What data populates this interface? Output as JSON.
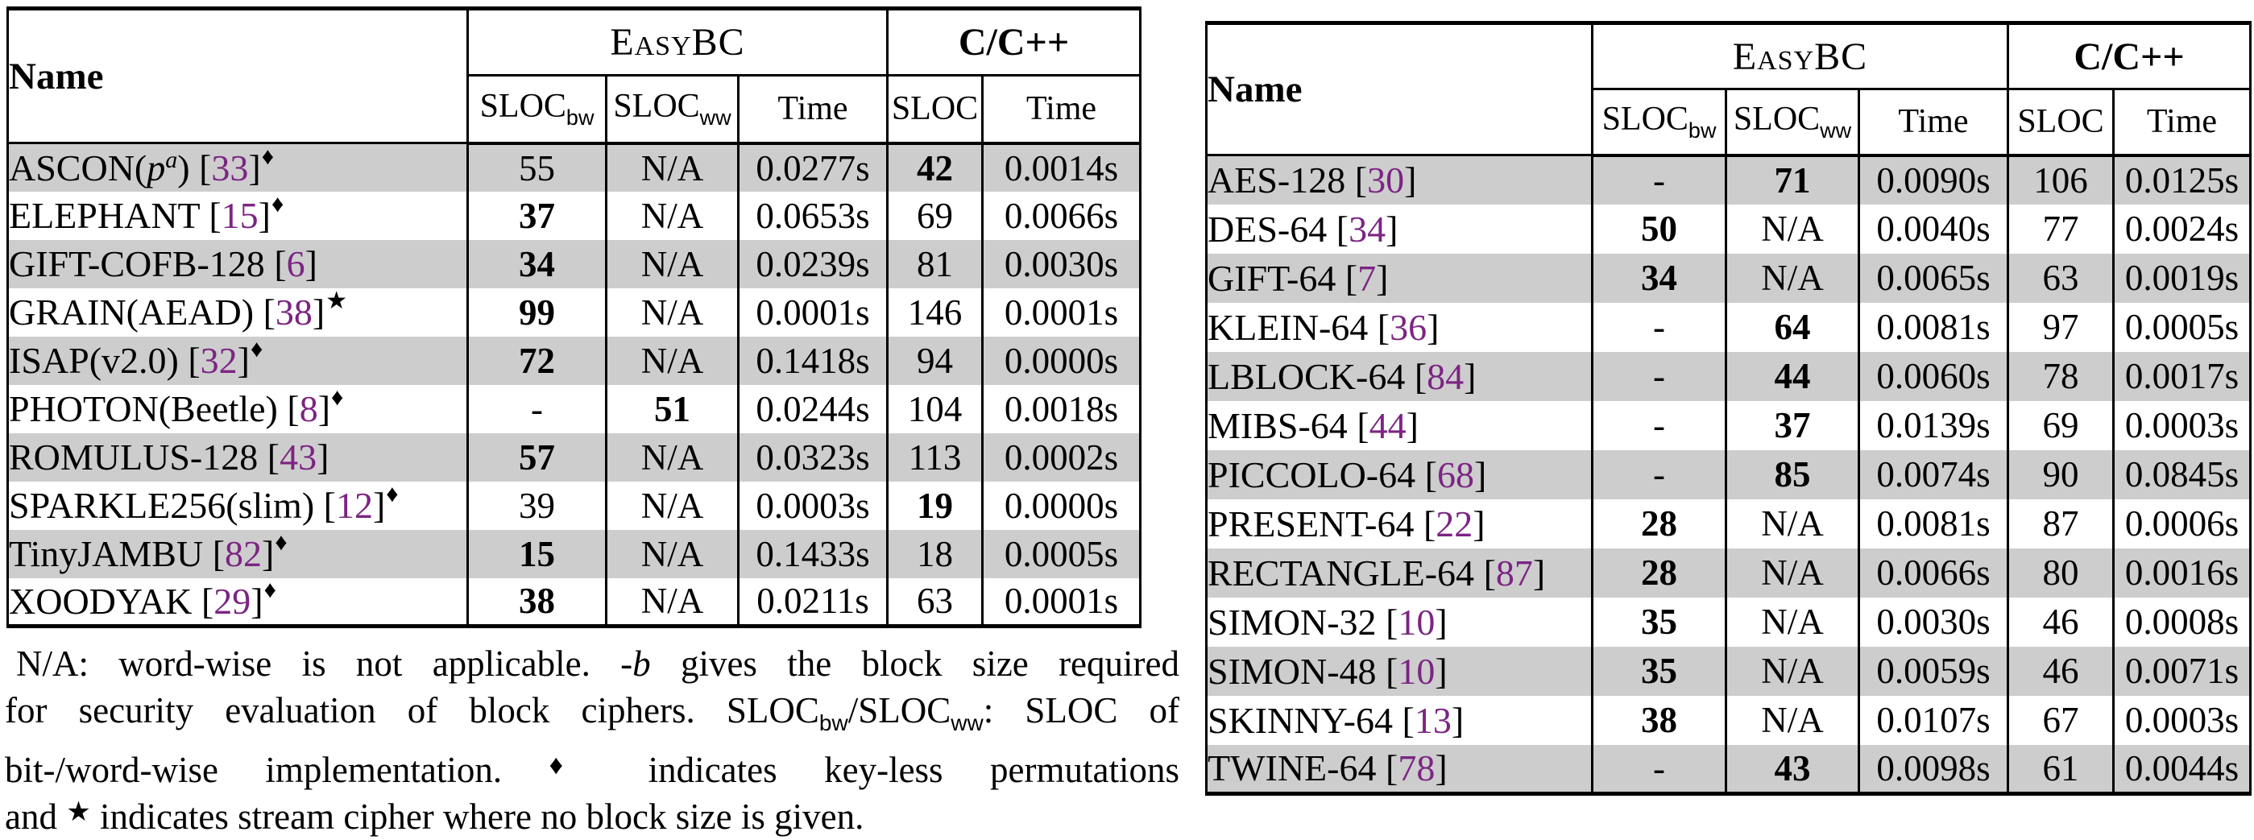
{
  "colors": {
    "citation": "#7C2483",
    "row_shade": "#CDCDCD",
    "border": "#000000"
  },
  "caption": {
    "lines": [
      [
        {
          "t": "N/A: word-wise is not applicable. -"
        },
        {
          "t": "b",
          "s": "scriptb"
        },
        {
          "t": " gives the block size required"
        }
      ],
      [
        {
          "t": "for security evaluation of block ciphers. SLOC"
        },
        {
          "t": "bw",
          "s": "sub"
        },
        {
          "t": "/SLOC"
        },
        {
          "t": "ww",
          "s": "sub"
        },
        {
          "t": ": SLOC of"
        }
      ],
      [
        {
          "t": "bit-/word-wise implementation. "
        },
        {
          "t": "♦",
          "s": "sym"
        },
        {
          "t": " indicates key-less permutations"
        }
      ],
      [
        {
          "t": "and "
        },
        {
          "t": "★",
          "s": "sym"
        },
        {
          "t": " indicates stream cipher where no block size is given."
        }
      ]
    ]
  },
  "tables": [
    {
      "header": {
        "name": "Name",
        "group1": "EasyBC",
        "group2": "C/C++",
        "cols": [
          {
            "label": "SLOC",
            "sub": "bw"
          },
          {
            "label": "SLOC",
            "sub": "ww"
          },
          {
            "label": "Time"
          },
          {
            "label": "SLOC"
          },
          {
            "label": "Time"
          }
        ]
      },
      "rows": [
        {
          "name": [
            {
              "t": "ASCON("
            },
            {
              "t": "p",
              "s": "i"
            },
            {
              "t": "a",
              "s": "supi"
            },
            {
              "t": ")"
            }
          ],
          "cite": "33",
          "marker": "♦",
          "shaded": true,
          "cells": [
            {
              "t": "55"
            },
            {
              "t": "N/A"
            },
            {
              "t": "0.0277s"
            },
            {
              "t": "42",
              "b": true
            },
            {
              "t": "0.0014s"
            }
          ]
        },
        {
          "name": [
            {
              "t": "ELEPHANT"
            }
          ],
          "cite": "15",
          "marker": "♦",
          "shaded": false,
          "cells": [
            {
              "t": "37",
              "b": true
            },
            {
              "t": "N/A"
            },
            {
              "t": "0.0653s"
            },
            {
              "t": "69"
            },
            {
              "t": "0.0066s"
            }
          ]
        },
        {
          "name": [
            {
              "t": "GIFT-COFB-128"
            }
          ],
          "cite": "6",
          "shaded": true,
          "cells": [
            {
              "t": "34",
              "b": true
            },
            {
              "t": "N/A"
            },
            {
              "t": "0.0239s"
            },
            {
              "t": "81"
            },
            {
              "t": "0.0030s"
            }
          ]
        },
        {
          "name": [
            {
              "t": "GRAIN(AEAD)"
            }
          ],
          "cite": "38",
          "marker": "★",
          "shaded": false,
          "cells": [
            {
              "t": "99",
              "b": true
            },
            {
              "t": "N/A"
            },
            {
              "t": "0.0001s"
            },
            {
              "t": "146"
            },
            {
              "t": "0.0001s"
            }
          ]
        },
        {
          "name": [
            {
              "t": "ISAP(v2.0)"
            }
          ],
          "cite": "32",
          "marker": "♦",
          "shaded": true,
          "cells": [
            {
              "t": "72",
              "b": true
            },
            {
              "t": "N/A"
            },
            {
              "t": "0.1418s"
            },
            {
              "t": "94"
            },
            {
              "t": "0.0000s"
            }
          ]
        },
        {
          "name": [
            {
              "t": "PHOTON(Beetle)"
            }
          ],
          "cite": "8",
          "marker": "♦",
          "shaded": false,
          "cells": [
            {
              "t": "-"
            },
            {
              "t": "51",
              "b": true
            },
            {
              "t": "0.0244s"
            },
            {
              "t": "104"
            },
            {
              "t": "0.0018s"
            }
          ]
        },
        {
          "name": [
            {
              "t": "ROMULUS-128"
            }
          ],
          "cite": "43",
          "shaded": true,
          "cells": [
            {
              "t": "57",
              "b": true
            },
            {
              "t": "N/A"
            },
            {
              "t": "0.0323s"
            },
            {
              "t": "113"
            },
            {
              "t": "0.0002s"
            }
          ]
        },
        {
          "name": [
            {
              "t": "SPARKLE256(slim)"
            }
          ],
          "cite": "12",
          "marker": "♦",
          "shaded": false,
          "cells": [
            {
              "t": "39"
            },
            {
              "t": "N/A"
            },
            {
              "t": "0.0003s"
            },
            {
              "t": "19",
              "b": true
            },
            {
              "t": "0.0000s"
            }
          ]
        },
        {
          "name": [
            {
              "t": "TinyJAMBU"
            }
          ],
          "cite": "82",
          "marker": "♦",
          "shaded": true,
          "cells": [
            {
              "t": "15",
              "b": true
            },
            {
              "t": "N/A"
            },
            {
              "t": "0.1433s"
            },
            {
              "t": "18"
            },
            {
              "t": "0.0005s"
            }
          ]
        },
        {
          "name": [
            {
              "t": "XOODYAK"
            }
          ],
          "cite": "29",
          "marker": "♦",
          "shaded": false,
          "cells": [
            {
              "t": "38",
              "b": true
            },
            {
              "t": "N/A"
            },
            {
              "t": "0.0211s"
            },
            {
              "t": "63"
            },
            {
              "t": "0.0001s"
            }
          ]
        }
      ]
    },
    {
      "header": {
        "name": "Name",
        "group1": "EasyBC",
        "group2": "C/C++",
        "cols": [
          {
            "label": "SLOC",
            "sub": "bw"
          },
          {
            "label": "SLOC",
            "sub": "ww"
          },
          {
            "label": "Time"
          },
          {
            "label": "SLOC"
          },
          {
            "label": "Time"
          }
        ]
      },
      "rows": [
        {
          "name": [
            {
              "t": "AES-128"
            }
          ],
          "cite": "30",
          "shaded": true,
          "cells": [
            {
              "t": "-"
            },
            {
              "t": "71",
              "b": true
            },
            {
              "t": "0.0090s"
            },
            {
              "t": "106"
            },
            {
              "t": "0.0125s"
            }
          ]
        },
        {
          "name": [
            {
              "t": "DES-64"
            }
          ],
          "cite": "34",
          "shaded": false,
          "cells": [
            {
              "t": "50",
              "b": true
            },
            {
              "t": "N/A"
            },
            {
              "t": "0.0040s"
            },
            {
              "t": "77"
            },
            {
              "t": "0.0024s"
            }
          ]
        },
        {
          "name": [
            {
              "t": "GIFT-64"
            }
          ],
          "cite": "7",
          "shaded": true,
          "cells": [
            {
              "t": "34",
              "b": true
            },
            {
              "t": "N/A"
            },
            {
              "t": "0.0065s"
            },
            {
              "t": "63"
            },
            {
              "t": "0.0019s"
            }
          ]
        },
        {
          "name": [
            {
              "t": "KLEIN-64"
            }
          ],
          "cite": "36",
          "shaded": false,
          "cells": [
            {
              "t": "-"
            },
            {
              "t": "64",
              "b": true
            },
            {
              "t": "0.0081s"
            },
            {
              "t": "97"
            },
            {
              "t": "0.0005s"
            }
          ]
        },
        {
          "name": [
            {
              "t": "LBLOCK-64"
            }
          ],
          "cite": "84",
          "shaded": true,
          "cells": [
            {
              "t": "-"
            },
            {
              "t": "44",
              "b": true
            },
            {
              "t": "0.0060s"
            },
            {
              "t": "78"
            },
            {
              "t": "0.0017s"
            }
          ]
        },
        {
          "name": [
            {
              "t": "MIBS-64"
            }
          ],
          "cite": "44",
          "shaded": false,
          "cells": [
            {
              "t": "-"
            },
            {
              "t": "37",
              "b": true
            },
            {
              "t": "0.0139s"
            },
            {
              "t": "69"
            },
            {
              "t": "0.0003s"
            }
          ]
        },
        {
          "name": [
            {
              "t": "PICCOLO-64"
            }
          ],
          "cite": "68",
          "shaded": true,
          "cells": [
            {
              "t": "-"
            },
            {
              "t": "85",
              "b": true
            },
            {
              "t": "0.0074s"
            },
            {
              "t": "90"
            },
            {
              "t": "0.0845s"
            }
          ]
        },
        {
          "name": [
            {
              "t": "PRESENT-64"
            }
          ],
          "cite": "22",
          "shaded": false,
          "cells": [
            {
              "t": "28",
              "b": true
            },
            {
              "t": "N/A"
            },
            {
              "t": "0.0081s"
            },
            {
              "t": "87"
            },
            {
              "t": "0.0006s"
            }
          ]
        },
        {
          "name": [
            {
              "t": "RECTANGLE-64"
            }
          ],
          "cite": "87",
          "shaded": true,
          "cells": [
            {
              "t": "28",
              "b": true
            },
            {
              "t": "N/A"
            },
            {
              "t": "0.0066s"
            },
            {
              "t": "80"
            },
            {
              "t": "0.0016s"
            }
          ]
        },
        {
          "name": [
            {
              "t": "SIMON-32"
            }
          ],
          "cite": "10",
          "shaded": false,
          "cells": [
            {
              "t": "35",
              "b": true
            },
            {
              "t": "N/A"
            },
            {
              "t": "0.0030s"
            },
            {
              "t": "46"
            },
            {
              "t": "0.0008s"
            }
          ]
        },
        {
          "name": [
            {
              "t": "SIMON-48"
            }
          ],
          "cite": "10",
          "shaded": true,
          "cells": [
            {
              "t": "35",
              "b": true
            },
            {
              "t": "N/A"
            },
            {
              "t": "0.0059s"
            },
            {
              "t": "46"
            },
            {
              "t": "0.0071s"
            }
          ]
        },
        {
          "name": [
            {
              "t": "SKINNY-64"
            }
          ],
          "cite": "13",
          "shaded": false,
          "cells": [
            {
              "t": "38",
              "b": true
            },
            {
              "t": "N/A"
            },
            {
              "t": "0.0107s"
            },
            {
              "t": "67"
            },
            {
              "t": "0.0003s"
            }
          ]
        },
        {
          "name": [
            {
              "t": "TWINE-64"
            }
          ],
          "cite": "78",
          "shaded": true,
          "cells": [
            {
              "t": "-"
            },
            {
              "t": "43",
              "b": true
            },
            {
              "t": "0.0098s"
            },
            {
              "t": "61"
            },
            {
              "t": "0.0044s"
            }
          ]
        }
      ]
    }
  ]
}
